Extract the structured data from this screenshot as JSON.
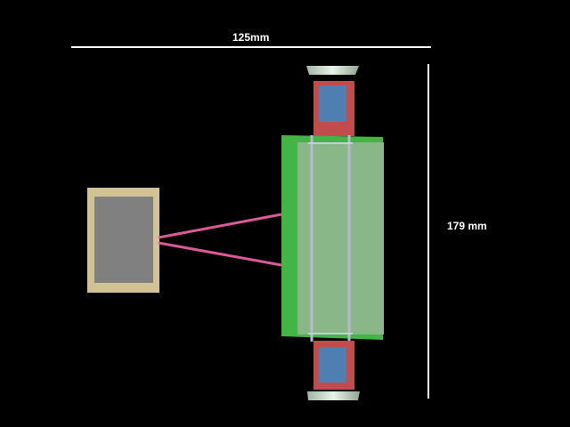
{
  "dimensions": {
    "width_label": "125mm",
    "height_label": "179 mm"
  },
  "colors": {
    "background": "#000000",
    "dimension_line": "#ffffff",
    "frame_green": "#44b544",
    "panel_green": "#8ab787",
    "rail": "#b8b8d4",
    "module_red": "#c24b4b",
    "module_blue": "#4e7fb0",
    "cap": "#cfe3d4",
    "box_frame": "#d1c393",
    "box_fill": "#808080",
    "link_pink": "#d95a98"
  }
}
